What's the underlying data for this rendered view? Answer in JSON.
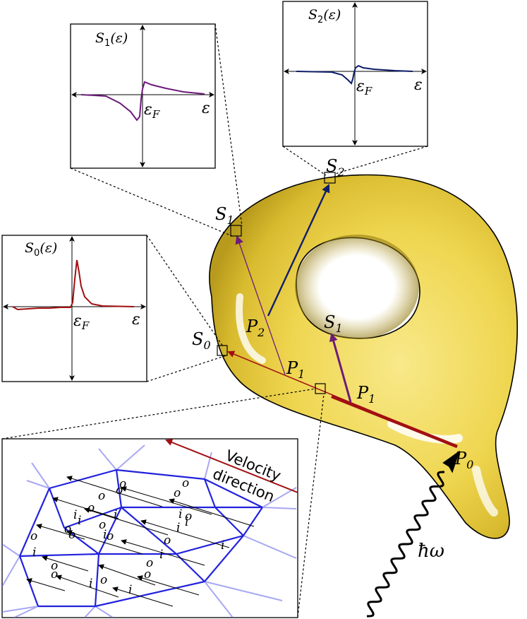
{
  "colors": {
    "blob_light": "#f7e67a",
    "blob_mid": "#e7cc43",
    "blob_dark": "#b89b1c",
    "dark_red": "#a10f12",
    "purple": "#6d1b7b",
    "navy": "#0f1d6b",
    "grid_blue": "#2222dd"
  },
  "plots": {
    "s1": {
      "title_prefix": "S",
      "title_sub": "1",
      "title_suffix": "(ε)",
      "ef": "ε",
      "ef_sub": "F",
      "eps": "ε"
    },
    "s2": {
      "title_prefix": "S",
      "title_sub": "2",
      "title_suffix": "(ε)",
      "ef": "ε",
      "ef_sub": "F",
      "eps": "ε"
    },
    "s0": {
      "title_prefix": "S",
      "title_sub": "0",
      "title_suffix": "(ε)",
      "ef": "ε",
      "ef_sub": "F",
      "eps": "ε"
    }
  },
  "points": {
    "s0": {
      "main": "S",
      "sub": "0"
    },
    "s1_left": {
      "main": "S",
      "sub": "1"
    },
    "s2": {
      "main": "S",
      "sub": "2"
    },
    "s1_inner": {
      "main": "S",
      "sub": "1"
    },
    "p0": {
      "main": "P",
      "sub": "0"
    },
    "p1_left": {
      "main": "P",
      "sub": "1"
    },
    "p1_right": {
      "main": "P",
      "sub": "1"
    },
    "p2": {
      "main": "P",
      "sub": "2"
    }
  },
  "photon": {
    "label": "ħω"
  },
  "inset": {
    "velocity_line1": "Velocity",
    "velocity_line2": "direction",
    "i_label": "i",
    "o_label": "o"
  }
}
